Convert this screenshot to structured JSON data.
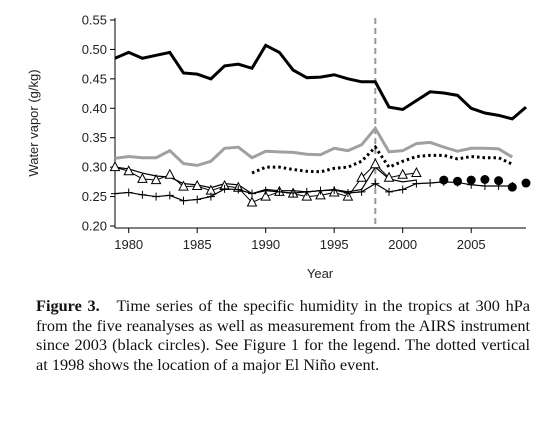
{
  "chart_data": {
    "type": "line",
    "x_label": "Year",
    "y_label": "Water vapor (g/kg)",
    "x": [
      1979,
      1980,
      1981,
      1982,
      1983,
      1984,
      1985,
      1986,
      1987,
      1988,
      1989,
      1990,
      1991,
      1992,
      1993,
      1994,
      1995,
      1996,
      1997,
      1998,
      1999,
      2000,
      2001,
      2002,
      2003,
      2004,
      2005,
      2006,
      2007,
      2008,
      2009
    ],
    "xlim": [
      1979,
      2009
    ],
    "xticks": [
      1980,
      1985,
      1990,
      1995,
      2000,
      2005
    ],
    "ylim": [
      0.2,
      0.55
    ],
    "yticks": [
      {
        "value": 0.2,
        "label": "0.20"
      },
      0.25,
      {
        "value": 0.3,
        "label": "0.30"
      },
      0.35,
      {
        "value": 0.4,
        "label": "0.40"
      },
      0.45,
      {
        "value": 0.5,
        "label": "0.50"
      },
      0.55
    ],
    "vline": {
      "x": 1998,
      "color": "#999999",
      "dash": "dotted"
    },
    "series": [
      {
        "color": "#000000",
        "width": 3,
        "marker": "none",
        "dash": "solid",
        "values": [
          0.485,
          0.495,
          0.485,
          0.49,
          0.495,
          0.46,
          0.458,
          0.45,
          0.472,
          0.475,
          0.468,
          0.507,
          0.495,
          0.465,
          0.452,
          0.453,
          0.457,
          0.45,
          0.445,
          0.445,
          0.402,
          0.398,
          0.413,
          0.428,
          0.426,
          0.422,
          0.4,
          0.392,
          0.388,
          0.382,
          0.402
        ]
      },
      {
        "color": "#a0a0a0",
        "width": 3,
        "marker": "none",
        "dash": "solid",
        "values": [
          0.315,
          0.318,
          0.316,
          0.316,
          0.328,
          0.306,
          0.303,
          0.31,
          0.332,
          0.334,
          0.316,
          0.327,
          0.326,
          0.325,
          0.322,
          0.321,
          0.332,
          0.328,
          0.338,
          0.366,
          0.326,
          0.328,
          0.34,
          0.342,
          0.334,
          0.327,
          0.332,
          0.332,
          0.331,
          0.317,
          null
        ]
      },
      {
        "color": "#000000",
        "width": 3,
        "marker": "none",
        "dash": "dotted",
        "values": [
          null,
          null,
          null,
          null,
          null,
          null,
          null,
          null,
          null,
          null,
          0.29,
          0.3,
          0.3,
          0.296,
          0.293,
          0.292,
          0.298,
          0.3,
          0.31,
          0.334,
          0.3,
          0.31,
          0.318,
          0.32,
          0.32,
          0.314,
          0.318,
          0.316,
          0.316,
          0.305,
          null
        ]
      },
      {
        "color": "#000000",
        "width": 1.2,
        "marker": "none",
        "dash": "solid",
        "values": [
          0.3,
          0.297,
          0.29,
          0.285,
          0.283,
          0.272,
          0.27,
          0.265,
          0.272,
          0.27,
          0.255,
          0.262,
          0.26,
          0.26,
          0.258,
          0.26,
          0.262,
          0.258,
          0.262,
          0.3,
          0.28,
          0.275,
          0.278,
          null,
          null,
          null,
          null,
          null,
          null,
          null,
          null
        ]
      },
      {
        "color": "#000000",
        "width": 1,
        "marker": "triangle",
        "dash": "solid",
        "values": [
          0.3,
          0.293,
          0.28,
          0.278,
          0.287,
          0.267,
          0.268,
          0.26,
          0.268,
          0.265,
          0.24,
          0.25,
          0.258,
          0.255,
          0.25,
          0.252,
          0.257,
          0.25,
          0.282,
          0.305,
          0.282,
          0.287,
          0.29,
          null,
          null,
          null,
          null,
          null,
          null,
          null,
          null
        ]
      },
      {
        "color": "#000000",
        "width": 1.2,
        "marker": "plus",
        "dash": "solid",
        "values": [
          0.255,
          0.257,
          0.253,
          0.25,
          0.252,
          0.243,
          0.245,
          0.25,
          0.263,
          0.262,
          0.255,
          0.26,
          0.258,
          0.256,
          0.258,
          0.26,
          0.261,
          0.256,
          0.258,
          0.272,
          0.258,
          0.262,
          0.272,
          0.273,
          0.275,
          0.274,
          0.27,
          0.268,
          0.268,
          0.268,
          null
        ]
      },
      {
        "color": "#000000",
        "width": 0,
        "marker": "circle",
        "dash": "none",
        "values": [
          null,
          null,
          null,
          null,
          null,
          null,
          null,
          null,
          null,
          null,
          null,
          null,
          null,
          null,
          null,
          null,
          null,
          null,
          null,
          null,
          null,
          null,
          null,
          null,
          0.278,
          0.276,
          0.278,
          0.279,
          0.277,
          0.266,
          0.273
        ]
      }
    ]
  },
  "caption": {
    "label": "Figure 3.",
    "text": "Time series of the specific humidity in the tropics at 300 hPa from the five reanalyses as well as measurement from the AIRS instrument since 2003 (black circles). See Figure 1 for the legend. The dotted vertical at 1998 shows the location of a major El Niño event."
  }
}
